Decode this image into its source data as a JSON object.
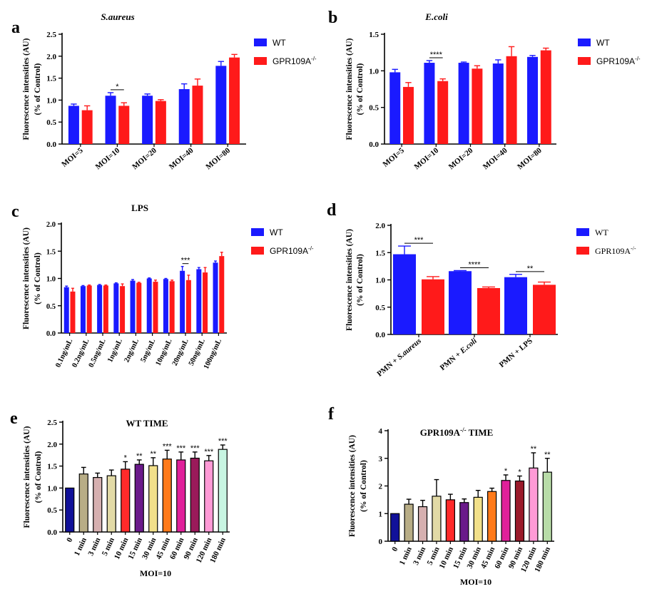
{
  "colors": {
    "blue": "#1a1aff",
    "red": "#ff1a1a",
    "axis": "#000000",
    "wt_time": [
      "#111199",
      "#b8ad86",
      "#d6b0b0",
      "#e2daa6",
      "#ff2a2a",
      "#6a1a8a",
      "#f2e08a",
      "#ff7a1a",
      "#e0209a",
      "#9a1a5a",
      "#ff9ad6",
      "#c8f5e2"
    ],
    "gpr_time": [
      "#111199",
      "#b8ad86",
      "#d6b0b0",
      "#e2daa6",
      "#ff2a2a",
      "#6a1a8a",
      "#f2e08a",
      "#ff7a1a",
      "#e0209a",
      "#9a1a2a",
      "#ff9ad6",
      "#b8dca8"
    ]
  },
  "panels": {
    "a": {
      "letter": "a"
    },
    "b": {
      "letter": "b"
    },
    "c": {
      "letter": "c"
    },
    "d": {
      "letter": "d"
    },
    "e": {
      "letter": "e"
    },
    "f": {
      "letter": "f"
    }
  },
  "chart_data": [
    {
      "id": "a",
      "type": "bar",
      "title": "S.aureus",
      "ylabel": "Fluorescence intensities (AU)",
      "ylabel2": "(% of Control)",
      "ylim": [
        0,
        2.5
      ],
      "yticks": [
        "0.0",
        "0.5",
        "1.0",
        "1.5",
        "2.0",
        "2.5"
      ],
      "categories": [
        "MOI=5",
        "MOI=10",
        "MOI=20",
        "MOI=40",
        "MOI=80"
      ],
      "series": [
        {
          "name": "WT",
          "color": "#1a1aff",
          "values": [
            0.87,
            1.1,
            1.1,
            1.25,
            1.78
          ],
          "errors": [
            0.04,
            0.07,
            0.04,
            0.12,
            0.1
          ]
        },
        {
          "name": "GPR109A",
          "sup": "-/-",
          "color": "#ff1a1a",
          "values": [
            0.77,
            0.87,
            0.98,
            1.33,
            1.97
          ],
          "errors": [
            0.1,
            0.07,
            0.03,
            0.15,
            0.07
          ]
        }
      ],
      "annotations": [
        {
          "text": "*",
          "category": 1
        }
      ]
    },
    {
      "id": "b",
      "type": "bar",
      "title": "E.coli",
      "ylabel": "Fluorescence intensities (AU)",
      "ylabel2": "(% of Control)",
      "ylim": [
        0,
        1.5
      ],
      "yticks": [
        "0.0",
        "0.5",
        "1.0",
        "1.5"
      ],
      "categories": [
        "MOI=5",
        "MOI=10",
        "MOI=20",
        "MOI=40",
        "MOI=80"
      ],
      "series": [
        {
          "name": "WT",
          "color": "#1a1aff",
          "values": [
            0.98,
            1.11,
            1.11,
            1.1,
            1.19
          ],
          "errors": [
            0.04,
            0.03,
            0.01,
            0.05,
            0.02
          ]
        },
        {
          "name": "GPR109A",
          "sup": "-/-",
          "color": "#ff1a1a",
          "values": [
            0.78,
            0.86,
            1.03,
            1.2,
            1.28
          ],
          "errors": [
            0.06,
            0.03,
            0.04,
            0.13,
            0.03
          ]
        }
      ],
      "annotations": [
        {
          "text": "****",
          "category": 1
        }
      ]
    },
    {
      "id": "c",
      "type": "bar",
      "title": "LPS",
      "ylabel": "Fluorescence intensities (AU)",
      "ylabel2": "(% of Control)",
      "ylim": [
        0,
        2.0
      ],
      "yticks": [
        "0.0",
        "0.5",
        "1.0",
        "1.5",
        "2.0"
      ],
      "categories": [
        "0.1ng/mL",
        "0.2ng/mL",
        "0.5ng/mL",
        "1ng/mL",
        "2ng/mL",
        "5ng/mL",
        "10ng/mL",
        "20ng/mL",
        "50ng/mL",
        "100ng/mL"
      ],
      "series": [
        {
          "name": "WT",
          "color": "#1a1aff",
          "values": [
            0.84,
            0.86,
            0.88,
            0.91,
            0.96,
            1.0,
            0.99,
            1.14,
            1.17,
            1.29
          ],
          "errors": [
            0.02,
            0.01,
            0.01,
            0.01,
            0.02,
            0.01,
            0.01,
            0.08,
            0.03,
            0.03
          ]
        },
        {
          "name": "GPR109A",
          "sup": "-/-",
          "color": "#ff1a1a",
          "values": [
            0.76,
            0.87,
            0.87,
            0.86,
            0.92,
            0.94,
            0.95,
            0.97,
            1.11,
            1.41
          ],
          "errors": [
            0.06,
            0.01,
            0.01,
            0.04,
            0.01,
            0.03,
            0.02,
            0.09,
            0.09,
            0.07
          ]
        }
      ],
      "annotations": [
        {
          "text": "***",
          "category": 7
        }
      ]
    },
    {
      "id": "d",
      "type": "bar",
      "title": "",
      "ylabel": "Fluorescence intensities (AU)",
      "ylabel2": "(% of Control)",
      "ylim": [
        0,
        2.0
      ],
      "yticks": [
        "0.0",
        "0.5",
        "1.0",
        "1.5",
        "2.0"
      ],
      "categories": [
        "PMN + S.aureus",
        "PMN + E.coli",
        "PMN + LPS"
      ],
      "category_parts": [
        [
          "PMN + ",
          "S.aureus"
        ],
        [
          "PMN + ",
          "E.coli"
        ],
        [
          "PMN + LPS",
          ""
        ]
      ],
      "series": [
        {
          "name": "WT",
          "color": "#1a1aff",
          "values": [
            1.47,
            1.16,
            1.05
          ],
          "errors": [
            0.15,
            0.01,
            0.05
          ]
        },
        {
          "name": "GPR109A",
          "sup": "-/-",
          "color": "#ff1a1a",
          "values": [
            1.01,
            0.85,
            0.91
          ],
          "errors": [
            0.05,
            0.02,
            0.05
          ]
        }
      ],
      "annotations": [
        {
          "text": "***",
          "category": 0
        },
        {
          "text": "****",
          "category": 1
        },
        {
          "text": "**",
          "category": 2
        }
      ]
    },
    {
      "id": "e",
      "type": "bar",
      "title": "WT TIME",
      "ylabel": "Fluorescence intensities (AU)",
      "ylabel2": "(% of Control)",
      "xlabel": "MOI=10",
      "ylim": [
        0,
        2.5
      ],
      "yticks": [
        "0.0",
        "0.5",
        "1.0",
        "1.5",
        "2.0",
        "2.5"
      ],
      "categories": [
        "0",
        "1 min",
        "3 min",
        "5 min",
        "10 min",
        "15 min",
        "30 min",
        "45 min",
        "60 min",
        "90 min",
        "120 min",
        "180 min"
      ],
      "values": [
        1.0,
        1.32,
        1.24,
        1.28,
        1.43,
        1.54,
        1.51,
        1.66,
        1.64,
        1.68,
        1.62,
        1.88
      ],
      "errors": [
        0.0,
        0.15,
        0.1,
        0.13,
        0.17,
        0.1,
        0.18,
        0.2,
        0.18,
        0.14,
        0.12,
        0.1
      ],
      "significance": [
        "",
        "",
        "",
        "",
        "*",
        "**",
        "**",
        "***",
        "***",
        "***",
        "***",
        "***"
      ]
    },
    {
      "id": "f",
      "type": "bar",
      "title": "GPR109A",
      "title_sup": "-/-",
      "title_rest": " TIME",
      "ylabel": "Fluorescence intensities (AU)",
      "ylabel2": "(% of Control)",
      "xlabel": "MOI=10",
      "ylim": [
        0,
        4
      ],
      "yticks": [
        "0",
        "1",
        "2",
        "3",
        "4"
      ],
      "categories": [
        "0",
        "1 min",
        "3 min",
        "5 min",
        "10 min",
        "15 min",
        "30 min",
        "45 min",
        "60 min",
        "90 min",
        "120 min",
        "180 min"
      ],
      "values": [
        1.0,
        1.34,
        1.25,
        1.63,
        1.5,
        1.4,
        1.59,
        1.8,
        2.2,
        2.18,
        2.65,
        2.5
      ],
      "errors": [
        0.0,
        0.18,
        0.23,
        0.6,
        0.2,
        0.13,
        0.25,
        0.12,
        0.2,
        0.18,
        0.55,
        0.5
      ],
      "significance": [
        "",
        "",
        "",
        "",
        "",
        "",
        "",
        "",
        "*",
        "*",
        "**",
        "**"
      ]
    }
  ]
}
